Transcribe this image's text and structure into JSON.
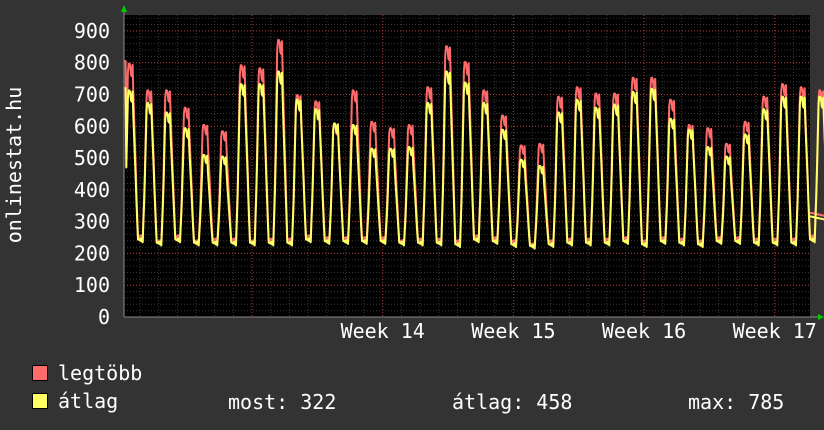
{
  "chart_data": {
    "type": "line",
    "ylabel": "onlinestat.hu",
    "ylim": [
      0,
      950
    ],
    "y_ticks": [
      "0",
      "100",
      "200",
      "300",
      "400",
      "500",
      "600",
      "700",
      "800",
      "900"
    ],
    "x_ticks": [
      {
        "label": "Week 14",
        "pos": 1.0
      },
      {
        "label": "Week 15",
        "pos": 2.0
      },
      {
        "label": "Week 16",
        "pos": 3.0
      },
      {
        "label": "Week 17",
        "pos": 4.0
      }
    ],
    "x_range": [
      -0.98,
      4.27
    ],
    "days_per_week": 7,
    "grid": true,
    "series": [
      {
        "name": "legtöbb",
        "color": "#ff6b6b",
        "daily_peaks": [
          805,
          720,
          720,
          665,
          610,
          590,
          800,
          790,
          880,
          705,
          685,
          610,
          720,
          620,
          600,
          610,
          730,
          860,
          810,
          720,
          640,
          545,
          550,
          700,
          730,
          710,
          710,
          760,
          760,
          690,
          610,
          600,
          550,
          620,
          700,
          740,
          730,
          720,
          760,
          700,
          700,
          700,
          660
        ],
        "daily_troughs": [
          245,
          230,
          245,
          230,
          235,
          235,
          230,
          235,
          235,
          245,
          240,
          240,
          240,
          240,
          230,
          235,
          235,
          230,
          245,
          240,
          230,
          220,
          230,
          235,
          235,
          235,
          240,
          230,
          240,
          235,
          230,
          240,
          240,
          235,
          235,
          235,
          245,
          240,
          245,
          245,
          240,
          240,
          235
        ]
      },
      {
        "name": "átlag",
        "color": "#ffff66",
        "daily_peaks": [
          720,
          680,
          650,
          600,
          515,
          510,
          740,
          740,
          780,
          690,
          660,
          615,
          610,
          535,
          535,
          540,
          680,
          780,
          745,
          680,
          595,
          500,
          480,
          650,
          690,
          665,
          675,
          715,
          725,
          630,
          595,
          540,
          510,
          580,
          660,
          700,
          700,
          700,
          740,
          700,
          690,
          620,
          590
        ],
        "daily_troughs": [
          235,
          225,
          235,
          225,
          225,
          225,
          225,
          225,
          225,
          235,
          230,
          230,
          230,
          230,
          225,
          225,
          225,
          220,
          235,
          230,
          220,
          215,
          220,
          225,
          225,
          225,
          230,
          220,
          230,
          225,
          220,
          230,
          230,
          225,
          225,
          225,
          235,
          230,
          235,
          235,
          230,
          230,
          225
        ],
        "last_value": 318
      }
    ]
  },
  "legend": [
    {
      "label": "legtöbb",
      "color": "#ff6b6b"
    },
    {
      "label": "átlag",
      "color": "#ffff66"
    }
  ],
  "stats": {
    "most": "most: 322",
    "atlag": "átlag: 458",
    "max": "max: 785"
  },
  "colors": {
    "background": "#333333",
    "plot_background": "#000000",
    "minor_grid": "#3a3a3a",
    "major_grid": "#b03a3a",
    "axis_arrow": "#00cc00",
    "text": "#ffffff"
  }
}
